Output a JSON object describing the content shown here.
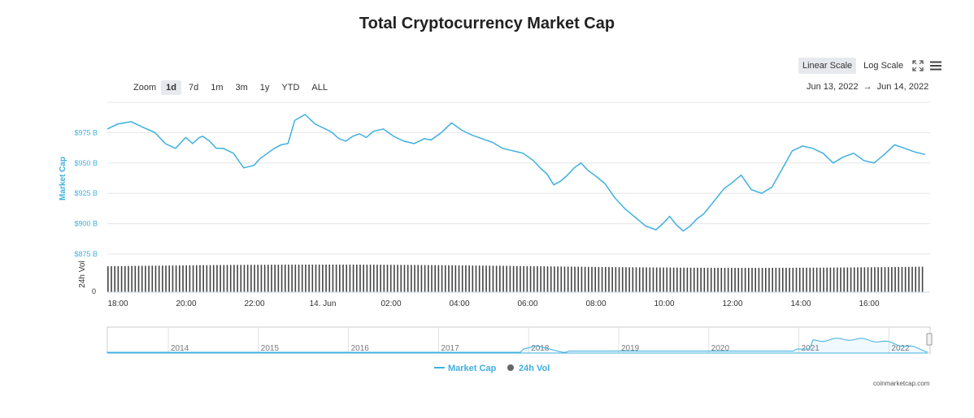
{
  "title": "Total Cryptocurrency Market Cap",
  "scale_buttons": {
    "linear": "Linear Scale",
    "log": "Log Scale"
  },
  "icons": {
    "fullscreen": "fullscreen-icon",
    "menu": "menu-icon"
  },
  "zoom": {
    "label": "Zoom",
    "options": [
      "1d",
      "7d",
      "1m",
      "3m",
      "1y",
      "YTD",
      "ALL"
    ],
    "selected": "1d"
  },
  "date_range": {
    "from": "Jun 13, 2022",
    "arrow": "→",
    "to": "Jun 14, 2022"
  },
  "colors": {
    "line": "#3fb0e0",
    "volume": "#444444",
    "axis_label": "#3fb0e0",
    "grid": "#e6e6e6"
  },
  "chart_data": {
    "type": "line",
    "ylabel": "Market Cap",
    "ylim": [
      875,
      1000
    ],
    "y_ticks": [
      975,
      950,
      925,
      900,
      875
    ],
    "y_tick_labels": [
      "$975 B",
      "$950 B",
      "$925 B",
      "$900 B",
      "$875 B"
    ],
    "x_tick_labels": [
      "18:00",
      "20:00",
      "22:00",
      "14. Jun",
      "02:00",
      "04:00",
      "06:00",
      "08:00",
      "10:00",
      "12:00",
      "14:00",
      "16:00"
    ],
    "x_range_hours": [
      0,
      24
    ],
    "series": [
      {
        "name": "Market Cap",
        "x": [
          0,
          0.3,
          0.7,
          1.0,
          1.4,
          1.7,
          2.0,
          2.3,
          2.5,
          2.7,
          2.8,
          3.0,
          3.2,
          3.4,
          3.7,
          4.0,
          4.3,
          4.5,
          4.7,
          4.9,
          5.1,
          5.3,
          5.5,
          5.8,
          6.1,
          6.4,
          6.6,
          6.8,
          7.0,
          7.2,
          7.4,
          7.6,
          7.8,
          8.1,
          8.4,
          8.7,
          9.0,
          9.3,
          9.5,
          9.8,
          10.1,
          10.4,
          10.7,
          11.0,
          11.3,
          11.6,
          11.9,
          12.2,
          12.5,
          12.7,
          12.9,
          13.1,
          13.3,
          13.5,
          13.7,
          13.9,
          14.1,
          14.3,
          14.6,
          14.9,
          15.2,
          15.5,
          15.8,
          16.1,
          16.3,
          16.5,
          16.7,
          16.9,
          17.1,
          17.3,
          17.5,
          17.7,
          17.9,
          18.1,
          18.3,
          18.6,
          18.9,
          19.2,
          19.5,
          19.8,
          20.1,
          20.4,
          20.7,
          21.0,
          21.3,
          21.6,
          21.9,
          22.2,
          22.5,
          22.8,
          23.1,
          23.4,
          23.7,
          24.0
        ],
        "values": [
          978,
          982,
          984,
          980,
          975,
          966,
          962,
          971,
          966,
          971,
          972,
          968,
          962,
          962,
          958,
          946,
          948,
          954,
          958,
          962,
          965,
          966,
          985,
          990,
          982,
          978,
          975,
          970,
          968,
          972,
          974,
          971,
          976,
          978,
          972,
          968,
          966,
          970,
          969,
          975,
          983,
          977,
          973,
          970,
          967,
          962,
          960,
          958,
          952,
          946,
          941,
          932,
          935,
          940,
          946,
          950,
          944,
          940,
          933,
          921,
          912,
          905,
          898,
          895,
          900,
          906,
          899,
          894,
          898,
          904,
          908,
          915,
          922,
          929,
          933,
          940,
          928,
          925,
          930,
          945,
          960,
          964,
          962,
          958,
          950,
          955,
          958,
          952,
          950,
          957,
          965,
          962,
          959,
          957
        ]
      },
      {
        "name": "24h Vol",
        "values": []
      }
    ],
    "volume_ylabel": "24h Vol",
    "volume_zero_label": "0",
    "navigator": {
      "year_labels": [
        "2014",
        "2015",
        "2016",
        "2017",
        "2018",
        "2019",
        "2020",
        "2021",
        "2022"
      ]
    },
    "legend": [
      "Market Cap",
      "24h Vol"
    ]
  },
  "footer": "coinmarketcap.com"
}
